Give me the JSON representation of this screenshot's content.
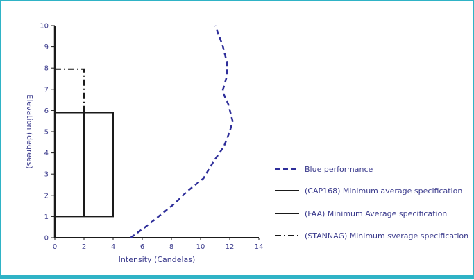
{
  "chart_data": {
    "type": "line",
    "title": "",
    "xlabel": "Intensity  (Candelas)",
    "ylabel": "Elevation (degrees)",
    "xlim": [
      0,
      14
    ],
    "ylim": [
      0,
      10
    ],
    "xticks": [
      0,
      2,
      4,
      6,
      8,
      10,
      12,
      14
    ],
    "yticks": [
      0,
      1,
      2,
      3,
      4,
      5,
      6,
      7,
      8,
      9,
      10
    ],
    "grid": false,
    "legend_position": "right",
    "series": [
      {
        "name": "Blue performance",
        "style": "dashed",
        "color": "#2e2e9a",
        "points": [
          [
            5.2,
            0
          ],
          [
            6.2,
            0.5
          ],
          [
            7.3,
            1.1
          ],
          [
            8.2,
            1.6
          ],
          [
            9.1,
            2.2
          ],
          [
            10.2,
            2.8
          ],
          [
            10.9,
            3.6
          ],
          [
            11.6,
            4.3
          ],
          [
            12.0,
            5.0
          ],
          [
            12.2,
            5.5
          ],
          [
            11.9,
            6.3
          ],
          [
            11.5,
            6.9
          ],
          [
            11.8,
            7.6
          ],
          [
            11.8,
            8.3
          ],
          [
            11.5,
            9.1
          ],
          [
            11.0,
            10.0
          ]
        ]
      },
      {
        "name": "(CAP168) Minimum average specification",
        "style": "solid",
        "color": "#1a1a1a",
        "points": [
          [
            0,
            1
          ],
          [
            4,
            1
          ],
          [
            4,
            5.9
          ],
          [
            0,
            5.9
          ]
        ]
      },
      {
        "name": "(FAA) Minimum Average specification",
        "style": "solid",
        "color": "#1a1a1a",
        "points": [
          [
            2,
            1
          ],
          [
            2,
            5.9
          ]
        ]
      },
      {
        "name": "(STANNAG) Minimum sverage specification",
        "style": "dashdot",
        "color": "#1a1a1a",
        "points": [
          [
            0,
            7.95
          ],
          [
            2,
            7.95
          ],
          [
            2,
            5.9
          ]
        ]
      }
    ]
  },
  "colors": {
    "axis": "#1a1a1a",
    "text": "#3a3a8c",
    "frame": "#2fb3c6"
  }
}
